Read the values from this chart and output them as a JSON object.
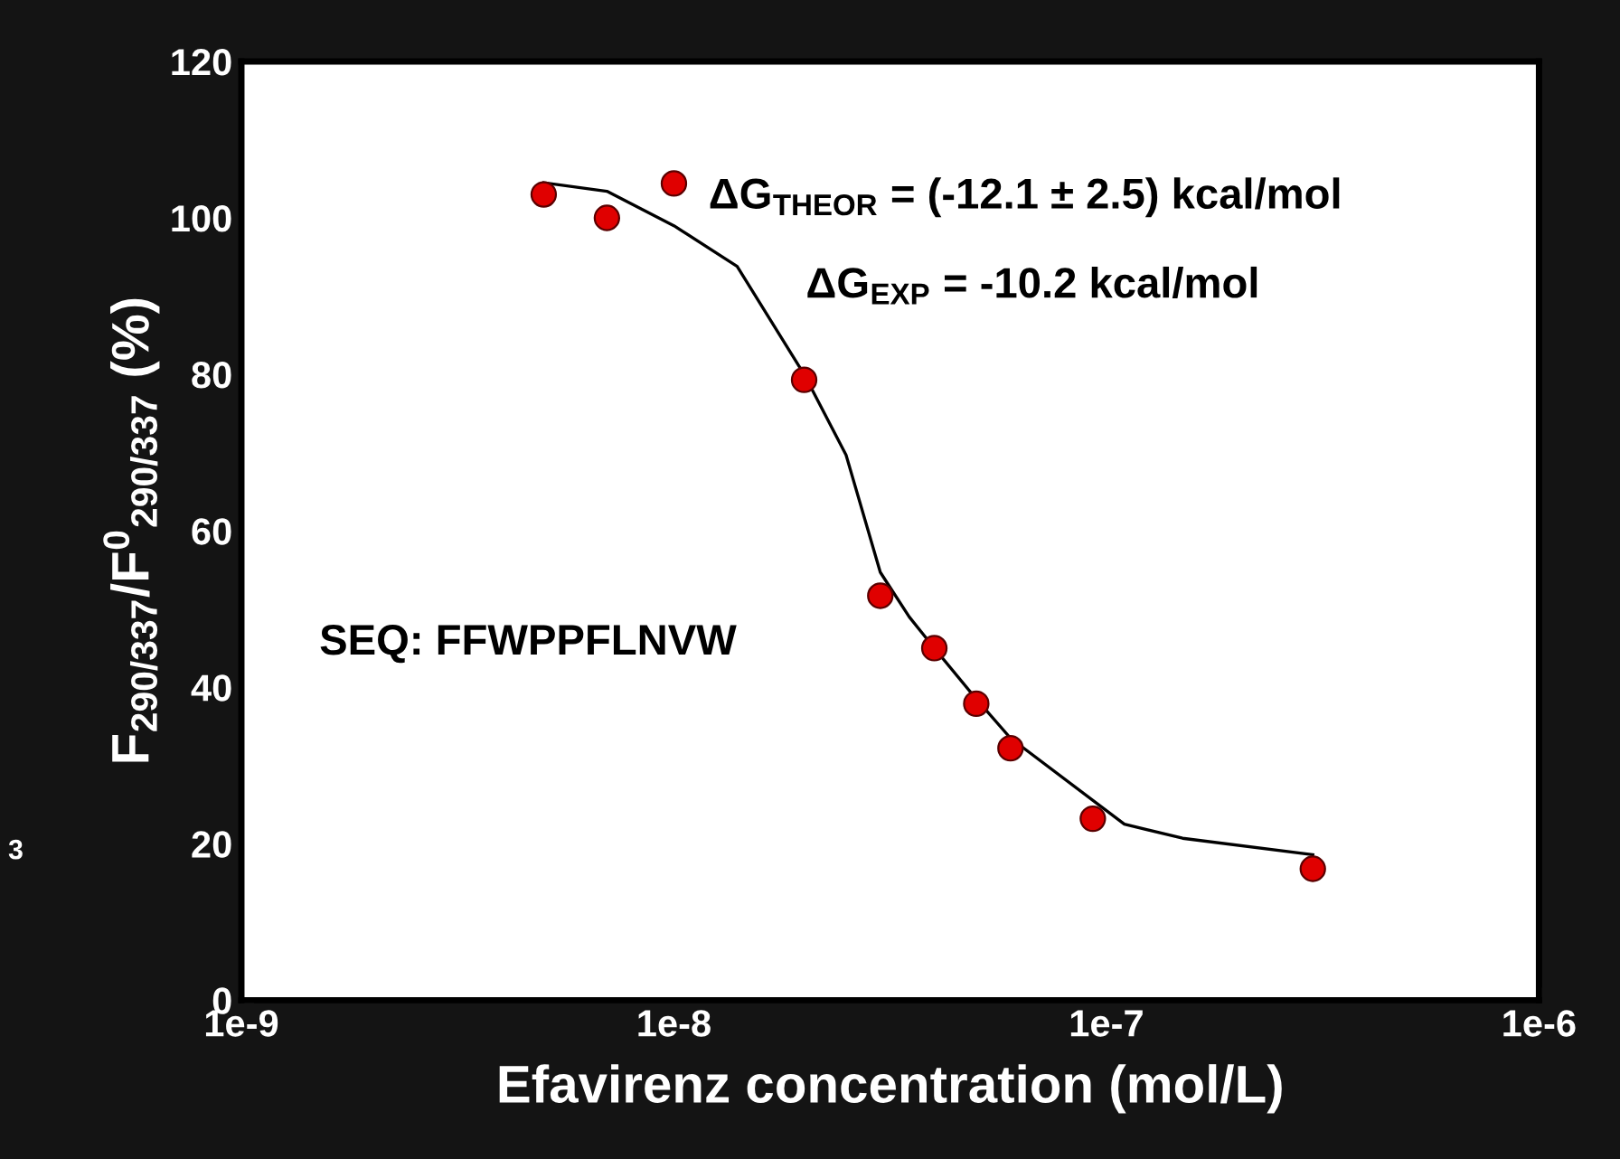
{
  "chart_data": {
    "type": "scatter",
    "log": "x",
    "xlabel": "Efavirenz concentration (mol/L)",
    "ylabel": "F$_{290/337}$/F$^{0}$$_{290/337}$ (%)",
    "xlim": [
      1e-09,
      1e-06
    ],
    "xticks": [
      {
        "value": 1e-09,
        "label": "1e-9"
      },
      {
        "value": 1e-08,
        "label": "1e-8"
      },
      {
        "value": 1e-07,
        "label": "1e-7"
      },
      {
        "value": 1e-06,
        "label": "1e-6"
      }
    ],
    "ylim": [
      0,
      120
    ],
    "yticks": [
      0,
      20,
      40,
      60,
      80,
      100,
      120
    ],
    "grid": false,
    "legend": false,
    "series": [
      {
        "marker": "circle",
        "color": "#e00000",
        "x": [
          5e-09,
          7e-09,
          1e-08,
          2e-08,
          3e-08,
          4e-08,
          5e-08,
          6e-08,
          9.3e-08,
          3e-07
        ],
        "values": [
          103,
          100,
          104.4,
          79.3,
          51.7,
          45,
          37.9,
          32.2,
          23.2,
          16.8
        ]
      },
      {
        "type": "line",
        "marker": "none",
        "line_style": "solid",
        "color": "#000000",
        "x": [
          5e-09,
          7e-09,
          1e-08,
          1.4e-08,
          2e-08,
          2.5e-08,
          3e-08,
          3.5e-08,
          4e-08,
          5e-08,
          6e-08,
          1.1e-07,
          1.5e-07,
          3e-07
        ],
        "values": [
          104.5,
          103.4,
          99,
          93.8,
          80,
          69.7,
          54.7,
          49,
          45,
          38.5,
          33.5,
          22.5,
          20.7,
          18.6
        ]
      }
    ],
    "annotations": [
      "ΔG$_{THEOR}$ = (-12.1 ± 2.5) kcal/mol",
      "ΔG$_{EXP}$ = -10.2 kcal/mol",
      "SEQ: FFWPPFLNVW",
      "3"
    ]
  }
}
